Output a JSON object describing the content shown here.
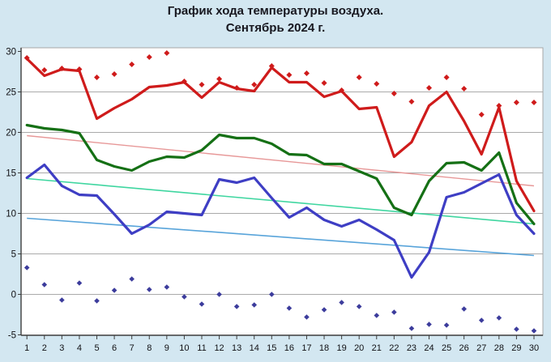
{
  "title": {
    "line1": "График хода температуры воздуха.",
    "line2": "Сентябрь 2024 г."
  },
  "colors": {
    "background": "#d3e7f1",
    "plot_background": "#ffffff",
    "gridline": "#aaaaaa",
    "plot_border": "#a7a7a7",
    "axis": "#3d3d3d",
    "tick_text": "#101014",
    "max_line": "#cf1b1b",
    "avg_line": "#157015",
    "min_line": "#3e3ec4",
    "upper_dots": "#cf1b1b",
    "lower_dots": "#3c3c9c",
    "trend_upper": "#e79898",
    "trend_middle": "#3fd6a0",
    "trend_lower": "#58a4da"
  },
  "chart_data": {
    "type": "line",
    "title": "График хода температуры воздуха. Сентябрь 2024 г.",
    "xlabel": "",
    "ylabel": "",
    "grid": true,
    "legend_position": "none",
    "ylim": [
      -5,
      30
    ],
    "y_ticks": [
      30,
      25,
      20,
      15,
      10,
      5,
      0,
      -5
    ],
    "x_ticks": [
      1,
      2,
      3,
      4,
      5,
      6,
      7,
      8,
      9,
      10,
      11,
      12,
      13,
      14,
      15,
      16,
      17,
      18,
      19,
      20,
      21,
      22,
      23,
      24,
      25,
      26,
      27,
      28,
      29,
      30
    ],
    "series": [
      {
        "name": "daily-max-temperature",
        "kind": "line",
        "color_key": "max_line",
        "width": 3.2,
        "values": [
          29.1,
          27.0,
          27.8,
          27.6,
          21.7,
          23.0,
          24.1,
          25.6,
          25.8,
          26.2,
          24.3,
          26.2,
          25.4,
          25.1,
          28.0,
          26.2,
          26.2,
          24.4,
          25.1,
          22.9,
          23.1,
          17.0,
          18.8,
          23.3,
          25.0,
          21.4,
          17.3,
          23.1,
          14.0,
          10.3
        ]
      },
      {
        "name": "daily-avg-temperature",
        "kind": "line",
        "color_key": "avg_line",
        "width": 3.2,
        "values": [
          20.9,
          20.5,
          20.3,
          19.9,
          16.6,
          15.8,
          15.3,
          16.4,
          17.0,
          16.9,
          17.8,
          19.7,
          19.3,
          19.3,
          18.6,
          17.3,
          17.2,
          16.1,
          16.1,
          15.2,
          14.3,
          10.7,
          9.8,
          14.0,
          16.2,
          16.3,
          15.3,
          17.5,
          11.3,
          8.7
        ]
      },
      {
        "name": "daily-min-temperature",
        "kind": "line",
        "color_key": "min_line",
        "width": 3.2,
        "values": [
          14.4,
          16.0,
          13.4,
          12.3,
          12.2,
          9.9,
          7.5,
          8.6,
          10.2,
          10.0,
          9.8,
          14.2,
          13.8,
          14.4,
          11.9,
          9.5,
          10.7,
          9.2,
          8.4,
          9.2,
          8.0,
          6.7,
          2.1,
          5.2,
          12.0,
          12.6,
          13.7,
          14.8,
          9.8,
          7.5
        ]
      },
      {
        "name": "upper-diamond-markers",
        "kind": "scatter",
        "marker": "diamond",
        "color_key": "upper_dots",
        "size": 3.5,
        "values": [
          29.2,
          27.7,
          27.9,
          27.8,
          26.8,
          27.2,
          28.4,
          29.3,
          29.8,
          26.3,
          25.9,
          26.6,
          25.5,
          25.9,
          28.2,
          27.1,
          27.3,
          26.1,
          25.2,
          26.8,
          26.0,
          24.8,
          23.8,
          25.5,
          26.8,
          25.4,
          22.2,
          23.3,
          23.7,
          23.7
        ]
      },
      {
        "name": "lower-diamond-markers",
        "kind": "scatter",
        "marker": "diamond",
        "color_key": "lower_dots",
        "size": 3.3,
        "values": [
          3.3,
          1.2,
          -0.7,
          1.4,
          -0.8,
          0.5,
          1.9,
          0.6,
          0.9,
          -0.3,
          -1.2,
          0.0,
          -1.5,
          -1.3,
          0.0,
          -1.7,
          -2.8,
          -1.9,
          -1.0,
          -1.5,
          -2.6,
          -2.2,
          -4.2,
          -3.7,
          -3.8,
          -1.8,
          -3.2,
          -2.9,
          -4.3,
          -4.5
        ]
      },
      {
        "name": "trend-line-upper",
        "kind": "straight",
        "color_key": "trend_upper",
        "width": 1.4,
        "start": 19.6,
        "end": 13.4
      },
      {
        "name": "trend-line-middle",
        "kind": "straight",
        "color_key": "trend_middle",
        "width": 1.6,
        "start": 14.3,
        "end": 8.7
      },
      {
        "name": "trend-line-lower",
        "kind": "straight",
        "color_key": "trend_lower",
        "width": 1.6,
        "start": 9.4,
        "end": 4.8
      }
    ]
  }
}
